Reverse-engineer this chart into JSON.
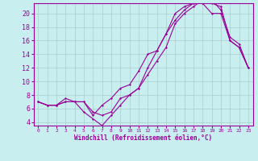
{
  "xlabel": "Windchill (Refroidissement éolien,°C)",
  "bg_color": "#c8eef0",
  "line_color": "#990099",
  "grid_color": "#aacccc",
  "xlim": [
    -0.5,
    23.5
  ],
  "ylim": [
    3.5,
    21.5
  ],
  "yticks": [
    4,
    6,
    8,
    10,
    12,
    14,
    16,
    18,
    20
  ],
  "xticks": [
    0,
    1,
    2,
    3,
    4,
    5,
    6,
    7,
    8,
    9,
    10,
    11,
    12,
    13,
    14,
    15,
    16,
    17,
    18,
    19,
    20,
    21,
    22,
    23
  ],
  "line1_x": [
    0,
    1,
    2,
    3,
    4,
    5,
    6,
    7,
    8,
    9,
    10,
    11,
    12,
    13,
    14,
    15,
    16,
    17,
    18,
    19,
    20,
    21,
    22,
    23
  ],
  "line1_y": [
    7,
    6.5,
    6.5,
    7,
    7,
    7,
    5,
    6.5,
    7.5,
    9,
    9.5,
    11.5,
    14,
    14.5,
    17,
    20,
    21,
    21.5,
    21.5,
    21.5,
    21,
    16,
    15,
    12
  ],
  "line2_x": [
    0,
    1,
    2,
    3,
    4,
    5,
    6,
    7,
    8,
    9,
    10,
    11,
    12,
    13,
    14,
    15,
    16,
    17,
    18,
    19,
    20,
    21,
    22,
    23
  ],
  "line2_y": [
    7,
    6.5,
    6.5,
    7.5,
    7,
    5.5,
    4.5,
    3.5,
    5,
    6.5,
    8,
    9,
    12,
    14.5,
    17,
    19,
    20.5,
    21.5,
    21.5,
    20,
    20,
    16,
    15,
    12
  ],
  "line3_x": [
    0,
    1,
    2,
    3,
    4,
    5,
    6,
    7,
    8,
    9,
    10,
    11,
    12,
    13,
    14,
    15,
    16,
    17,
    18,
    19,
    20,
    21,
    22,
    23
  ],
  "line3_y": [
    7,
    6.5,
    6.5,
    7,
    7,
    7,
    5.5,
    5,
    5.5,
    7.5,
    8,
    9,
    11,
    13,
    15,
    18.5,
    20,
    21,
    22,
    22,
    20.5,
    16.5,
    15.5,
    12
  ],
  "xlabel_fontsize": 5.5,
  "ytick_fontsize": 6.0,
  "xtick_fontsize": 4.5
}
